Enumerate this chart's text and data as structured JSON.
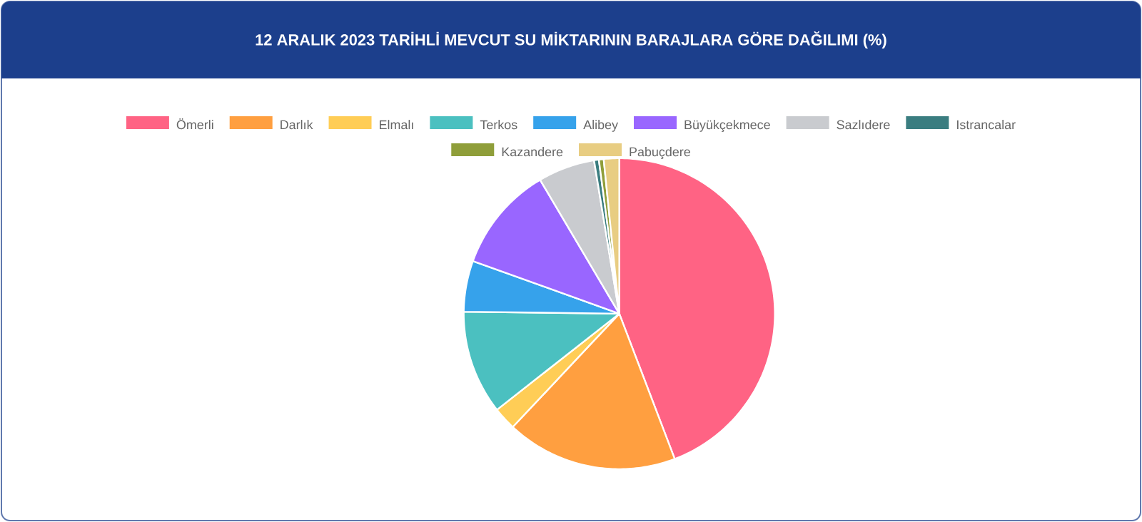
{
  "chart_data": {
    "type": "pie",
    "title": "12 ARALIK 2023 TARİHLİ MEVCUT SU MİKTARININ BARAJLARA GÖRE DAĞILIMI (%)",
    "categories": [
      "Ömerli",
      "Darlık",
      "Elmalı",
      "Terkos",
      "Alibey",
      "Büyükçekmece",
      "Sazlıdere",
      "Istrancalar",
      "Kazandere",
      "Pabuçdere"
    ],
    "values": [
      44.2,
      17.8,
      2.4,
      10.8,
      5.3,
      11.0,
      5.9,
      0.5,
      0.5,
      1.6
    ],
    "colors": [
      "#ff6384",
      "#ff9f40",
      "#ffcd56",
      "#4bc0c0",
      "#36a2eb",
      "#9966ff",
      "#c9cbcf",
      "#3a7d80",
      "#8f9e3a",
      "#e8cd82"
    ],
    "legend": "top"
  }
}
